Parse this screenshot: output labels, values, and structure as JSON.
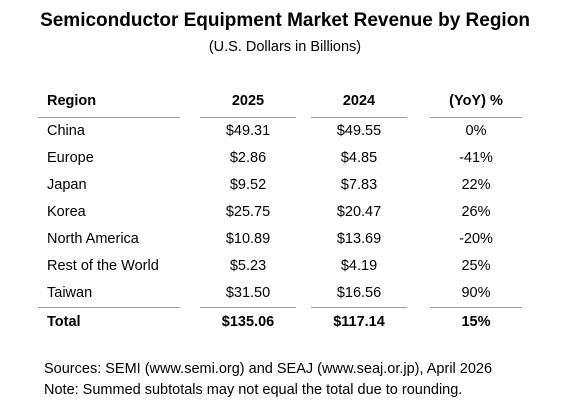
{
  "title": "Semiconductor Equipment Market Revenue by Region",
  "subtitle": "(U.S. Dollars in Billions)",
  "table": {
    "headers": {
      "region": "Region",
      "y2025": "2025",
      "y2024": "2024",
      "yoy": "(YoY) %"
    },
    "rows": [
      {
        "region": "China",
        "y2025": "$49.31",
        "y2024": "$49.55",
        "yoy": "0%"
      },
      {
        "region": "Europe",
        "y2025": "$2.86",
        "y2024": "$4.85",
        "yoy": "-41%"
      },
      {
        "region": "Japan",
        "y2025": "$9.52",
        "y2024": "$7.83",
        "yoy": "22%"
      },
      {
        "region": "Korea",
        "y2025": "$25.75",
        "y2024": "$20.47",
        "yoy": "26%"
      },
      {
        "region": "North America",
        "y2025": "$10.89",
        "y2024": "$13.69",
        "yoy": "-20%"
      },
      {
        "region": "Rest of the World",
        "y2025": "$5.23",
        "y2024": "$4.19",
        "yoy": "25%"
      },
      {
        "region": "Taiwan",
        "y2025": "$31.50",
        "y2024": "$16.56",
        "yoy": "90%"
      }
    ],
    "total": {
      "region": "Total",
      "y2025": "$135.06",
      "y2024": "$117.14",
      "yoy": "15%"
    }
  },
  "notes": {
    "sources": "Sources: SEMI (www.semi.org) and SEAJ (www.seaj.or.jp), April 2026",
    "note": "Note: Summed subtotals may not equal the total due to rounding."
  },
  "colors": {
    "rule": "#6dbf59",
    "text": "#000000",
    "background": "#ffffff"
  }
}
